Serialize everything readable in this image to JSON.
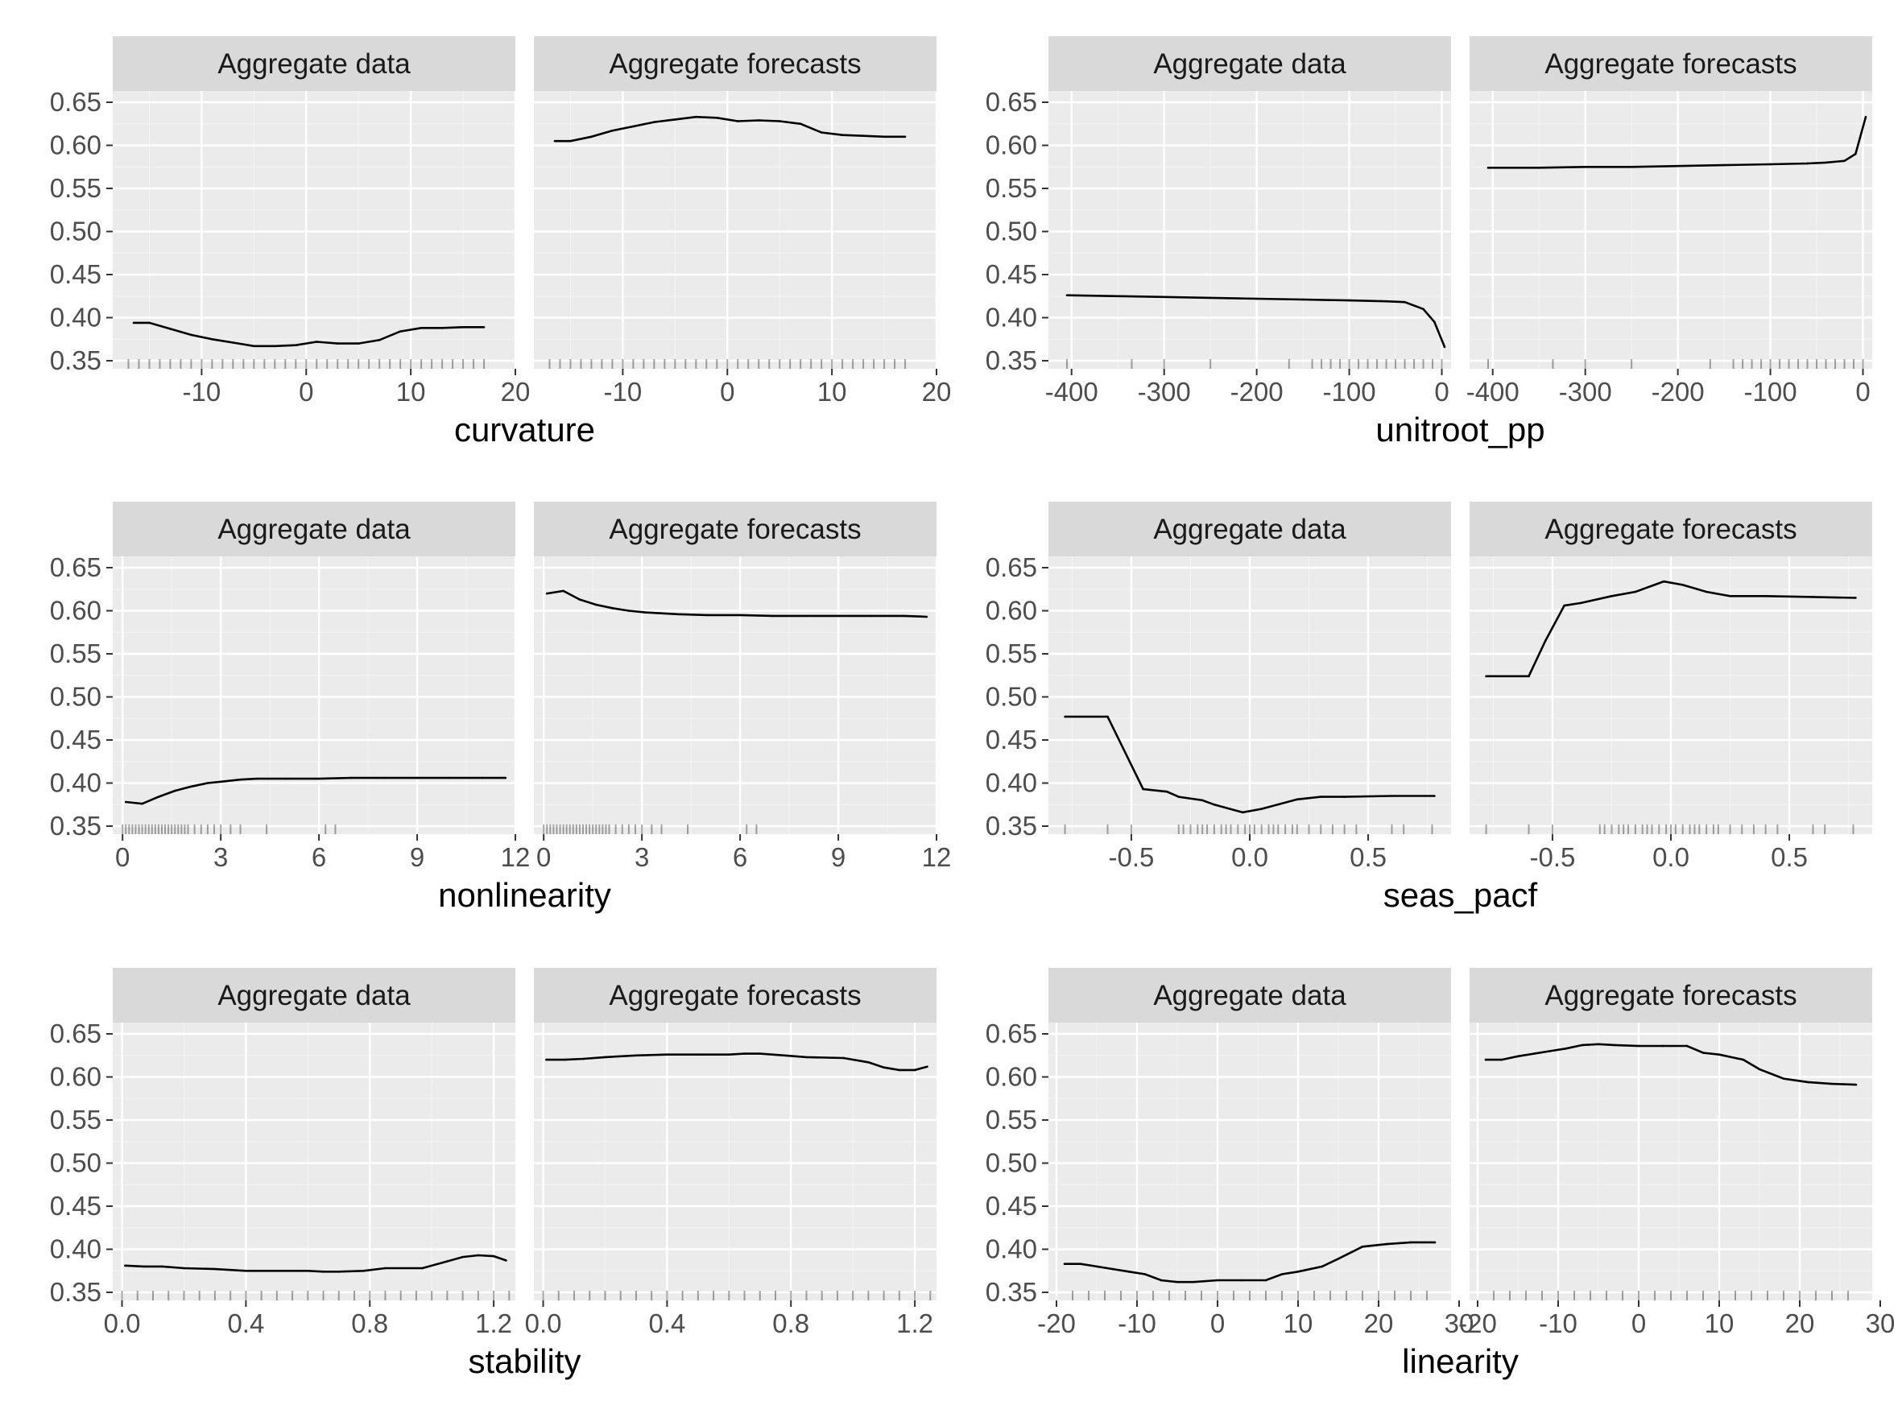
{
  "chart_data": [
    {
      "type": "line",
      "xlabel": "curvature",
      "ylabel": "",
      "ylim": [
        0.35,
        0.65
      ],
      "yticks": [
        "0.35",
        "0.40",
        "0.45",
        "0.50",
        "0.55",
        "0.60",
        "0.65"
      ],
      "grid": true,
      "facets": [
        {
          "title": "Aggregate data",
          "xlim": [
            -18.5,
            20
          ],
          "xticks": [
            "-10",
            "0",
            "10",
            "20"
          ],
          "x": [
            -16.5,
            -15,
            -13,
            -11,
            -9,
            -7,
            -5,
            -3,
            -1,
            1,
            3,
            5,
            7,
            9,
            11,
            13,
            15,
            17
          ],
          "y": [
            0.394,
            0.394,
            0.387,
            0.38,
            0.375,
            0.371,
            0.367,
            0.367,
            0.368,
            0.372,
            0.37,
            0.37,
            0.374,
            0.384,
            0.388,
            0.388,
            0.389,
            0.389
          ],
          "rug": [
            -17,
            -16,
            -15,
            -14,
            -13,
            -12,
            -11,
            -10,
            -9,
            -8,
            -7,
            -6,
            -5,
            -4,
            -3,
            -2,
            -1,
            0,
            1,
            2,
            3,
            4,
            5,
            6,
            7,
            8,
            9,
            10,
            11,
            12,
            13,
            14,
            15,
            16,
            17
          ]
        },
        {
          "title": "Aggregate forecasts",
          "xlim": [
            -18.5,
            20
          ],
          "xticks": [
            "-10",
            "0",
            "10",
            "20"
          ],
          "x": [
            -16.5,
            -15,
            -13,
            -11,
            -9,
            -7,
            -5,
            -3,
            -1,
            1,
            3,
            5,
            7,
            9,
            11,
            13,
            15,
            17
          ],
          "y": [
            0.605,
            0.605,
            0.61,
            0.617,
            0.622,
            0.627,
            0.63,
            0.633,
            0.632,
            0.628,
            0.629,
            0.628,
            0.625,
            0.615,
            0.612,
            0.611,
            0.61,
            0.61
          ],
          "rug": [
            -17,
            -16,
            -15,
            -14,
            -13,
            -12,
            -11,
            -10,
            -9,
            -8,
            -7,
            -6,
            -5,
            -4,
            -3,
            -2,
            -1,
            0,
            1,
            2,
            3,
            4,
            5,
            6,
            7,
            8,
            9,
            10,
            11,
            12,
            13,
            14,
            15,
            16,
            17
          ]
        }
      ]
    },
    {
      "type": "line",
      "xlabel": "unitroot_pp",
      "ylabel": "",
      "ylim": [
        0.35,
        0.65
      ],
      "yticks": [
        "0.35",
        "0.40",
        "0.45",
        "0.50",
        "0.55",
        "0.60",
        "0.65"
      ],
      "grid": true,
      "facets": [
        {
          "title": "Aggregate data",
          "xlim": [
            -425,
            10
          ],
          "xticks": [
            "-400",
            "-300",
            "-200",
            "-100",
            "0"
          ],
          "x": [
            -405,
            -350,
            -300,
            -250,
            -200,
            -150,
            -100,
            -60,
            -40,
            -20,
            -8,
            3
          ],
          "y": [
            0.426,
            0.425,
            0.424,
            0.423,
            0.422,
            0.421,
            0.42,
            0.419,
            0.418,
            0.41,
            0.395,
            0.366
          ],
          "rug": [
            -405,
            -335,
            -300,
            -250,
            -165,
            -140,
            -130,
            -120,
            -110,
            -100,
            -90,
            -80,
            -70,
            -60,
            -50,
            -40,
            -30,
            -20,
            -10,
            0
          ]
        },
        {
          "title": "Aggregate forecasts",
          "xlim": [
            -425,
            10
          ],
          "xticks": [
            "-400",
            "-300",
            "-200",
            "-100",
            "0"
          ],
          "x": [
            -405,
            -350,
            -300,
            -250,
            -200,
            -150,
            -100,
            -60,
            -40,
            -20,
            -8,
            3
          ],
          "y": [
            0.574,
            0.574,
            0.575,
            0.575,
            0.576,
            0.577,
            0.578,
            0.579,
            0.58,
            0.582,
            0.59,
            0.633
          ],
          "rug": [
            -405,
            -335,
            -300,
            -250,
            -165,
            -140,
            -130,
            -120,
            -110,
            -100,
            -90,
            -80,
            -70,
            -60,
            -50,
            -40,
            -30,
            -20,
            -10,
            0
          ]
        }
      ]
    },
    {
      "type": "line",
      "xlabel": "nonlinearity",
      "ylabel": "",
      "ylim": [
        0.35,
        0.65
      ],
      "yticks": [
        "0.35",
        "0.40",
        "0.45",
        "0.50",
        "0.55",
        "0.60",
        "0.65"
      ],
      "grid": true,
      "facets": [
        {
          "title": "Aggregate data",
          "xlim": [
            -0.3,
            12
          ],
          "xticks": [
            "0",
            "3",
            "6",
            "9",
            "12"
          ],
          "x": [
            0.1,
            0.6,
            1.1,
            1.6,
            2.1,
            2.6,
            3.1,
            3.6,
            4.1,
            5,
            6,
            7,
            8,
            9,
            10,
            11,
            11.7
          ],
          "y": [
            0.378,
            0.376,
            0.384,
            0.391,
            0.396,
            0.4,
            0.402,
            0.404,
            0.405,
            0.405,
            0.405,
            0.406,
            0.406,
            0.406,
            0.406,
            0.406,
            0.406
          ],
          "rug": [
            0,
            0.1,
            0.2,
            0.3,
            0.4,
            0.5,
            0.6,
            0.7,
            0.8,
            0.9,
            1.0,
            1.1,
            1.2,
            1.3,
            1.4,
            1.5,
            1.6,
            1.7,
            1.8,
            1.9,
            2.0,
            2.2,
            2.4,
            2.6,
            2.8,
            3.0,
            3.3,
            3.6,
            4.4,
            6.2,
            6.5
          ]
        },
        {
          "title": "Aggregate forecasts",
          "xlim": [
            -0.3,
            12
          ],
          "xticks": [
            "0",
            "3",
            "6",
            "9",
            "12"
          ],
          "x": [
            0.1,
            0.6,
            1.1,
            1.6,
            2.1,
            2.6,
            3.1,
            3.6,
            4.1,
            5,
            6,
            7,
            8,
            9,
            10,
            11,
            11.7
          ],
          "y": [
            0.62,
            0.623,
            0.613,
            0.607,
            0.603,
            0.6,
            0.598,
            0.597,
            0.596,
            0.595,
            0.595,
            0.594,
            0.594,
            0.594,
            0.594,
            0.594,
            0.593
          ],
          "rug": [
            0,
            0.1,
            0.2,
            0.3,
            0.4,
            0.5,
            0.6,
            0.7,
            0.8,
            0.9,
            1.0,
            1.1,
            1.2,
            1.3,
            1.4,
            1.5,
            1.6,
            1.7,
            1.8,
            1.9,
            2.0,
            2.2,
            2.4,
            2.6,
            2.8,
            3.0,
            3.3,
            3.6,
            4.4,
            6.2,
            6.5
          ]
        }
      ]
    },
    {
      "type": "line",
      "xlabel": "seas_pacf",
      "ylabel": "",
      "ylim": [
        0.35,
        0.65
      ],
      "yticks": [
        "0.35",
        "0.40",
        "0.45",
        "0.50",
        "0.55",
        "0.60",
        "0.65"
      ],
      "grid": true,
      "facets": [
        {
          "title": "Aggregate data",
          "xlim": [
            -0.85,
            0.85
          ],
          "xticks": [
            "-0.5",
            "0.0",
            "0.5"
          ],
          "x": [
            -0.78,
            -0.6,
            -0.45,
            -0.35,
            -0.3,
            -0.2,
            -0.15,
            -0.03,
            0.05,
            0.2,
            0.3,
            0.4,
            0.6,
            0.78
          ],
          "y": [
            0.477,
            0.477,
            0.393,
            0.39,
            0.384,
            0.38,
            0.375,
            0.366,
            0.37,
            0.381,
            0.384,
            0.384,
            0.385,
            0.385
          ],
          "rug": [
            -0.78,
            -0.6,
            -0.5,
            -0.3,
            -0.28,
            -0.25,
            -0.22,
            -0.2,
            -0.18,
            -0.15,
            -0.12,
            -0.1,
            -0.08,
            -0.05,
            -0.02,
            0,
            0.02,
            0.05,
            0.08,
            0.1,
            0.12,
            0.15,
            0.18,
            0.2,
            0.25,
            0.3,
            0.35,
            0.4,
            0.45,
            0.6,
            0.65,
            0.77
          ]
        },
        {
          "title": "Aggregate forecasts",
          "xlim": [
            -0.85,
            0.85
          ],
          "xticks": [
            "-0.5",
            "0.0",
            "0.5"
          ],
          "x": [
            -0.78,
            -0.6,
            -0.53,
            -0.45,
            -0.38,
            -0.25,
            -0.15,
            -0.03,
            0.05,
            0.15,
            0.25,
            0.4,
            0.6,
            0.78
          ],
          "y": [
            0.524,
            0.524,
            0.565,
            0.606,
            0.609,
            0.617,
            0.622,
            0.634,
            0.63,
            0.622,
            0.617,
            0.617,
            0.616,
            0.615
          ],
          "rug": [
            -0.78,
            -0.6,
            -0.5,
            -0.3,
            -0.28,
            -0.25,
            -0.22,
            -0.2,
            -0.18,
            -0.15,
            -0.12,
            -0.1,
            -0.08,
            -0.05,
            -0.02,
            0,
            0.02,
            0.05,
            0.08,
            0.1,
            0.12,
            0.15,
            0.18,
            0.2,
            0.25,
            0.3,
            0.35,
            0.4,
            0.45,
            0.6,
            0.65,
            0.77
          ]
        }
      ]
    },
    {
      "type": "line",
      "xlabel": "stability",
      "ylabel": "",
      "ylim": [
        0.35,
        0.65
      ],
      "yticks": [
        "0.35",
        "0.40",
        "0.45",
        "0.50",
        "0.55",
        "0.60",
        "0.65"
      ],
      "grid": true,
      "facets": [
        {
          "title": "Aggregate data",
          "xlim": [
            -0.03,
            1.27
          ],
          "xticks": [
            "0.0",
            "0.4",
            "0.8",
            "1.2"
          ],
          "x": [
            0.01,
            0.07,
            0.13,
            0.2,
            0.3,
            0.4,
            0.5,
            0.6,
            0.65,
            0.7,
            0.78,
            0.85,
            0.97,
            1.05,
            1.1,
            1.15,
            1.2,
            1.24
          ],
          "y": [
            0.381,
            0.38,
            0.38,
            0.378,
            0.377,
            0.375,
            0.375,
            0.375,
            0.374,
            0.374,
            0.375,
            0.378,
            0.378,
            0.386,
            0.391,
            0.393,
            0.392,
            0.387
          ],
          "rug": [
            0.0,
            0.05,
            0.1,
            0.15,
            0.2,
            0.25,
            0.3,
            0.35,
            0.4,
            0.45,
            0.5,
            0.55,
            0.6,
            0.65,
            0.7,
            0.75,
            0.8,
            0.85,
            0.9,
            0.95,
            1.0,
            1.05,
            1.1,
            1.15,
            1.2,
            1.25
          ]
        },
        {
          "title": "Aggregate forecasts",
          "xlim": [
            -0.03,
            1.27
          ],
          "xticks": [
            "0.0",
            "0.4",
            "0.8",
            "1.2"
          ],
          "x": [
            0.01,
            0.07,
            0.13,
            0.2,
            0.3,
            0.4,
            0.5,
            0.6,
            0.65,
            0.7,
            0.78,
            0.85,
            0.97,
            1.05,
            1.1,
            1.15,
            1.2,
            1.24
          ],
          "y": [
            0.62,
            0.62,
            0.621,
            0.623,
            0.625,
            0.626,
            0.626,
            0.626,
            0.627,
            0.627,
            0.625,
            0.623,
            0.622,
            0.617,
            0.611,
            0.608,
            0.608,
            0.612
          ],
          "rug": [
            0.0,
            0.05,
            0.1,
            0.15,
            0.2,
            0.25,
            0.3,
            0.35,
            0.4,
            0.45,
            0.5,
            0.55,
            0.6,
            0.65,
            0.7,
            0.75,
            0.8,
            0.85,
            0.9,
            0.95,
            1.0,
            1.05,
            1.1,
            1.15,
            1.2,
            1.25
          ]
        }
      ]
    },
    {
      "type": "line",
      "xlabel": "linearity",
      "ylabel": "",
      "ylim": [
        0.35,
        0.65
      ],
      "yticks": [
        "0.35",
        "0.40",
        "0.45",
        "0.50",
        "0.55",
        "0.60",
        "0.65"
      ],
      "grid": true,
      "facets": [
        {
          "title": "Aggregate data",
          "xlim": [
            -21,
            29
          ],
          "xticks": [
            "-20",
            "-10",
            "0",
            "10",
            "20",
            "30"
          ],
          "x": [
            -19,
            -17,
            -15,
            -13,
            -11,
            -9,
            -7,
            -5,
            -3,
            0,
            3,
            6,
            8,
            10,
            13,
            15,
            18,
            21,
            24,
            27
          ],
          "y": [
            0.383,
            0.383,
            0.38,
            0.377,
            0.374,
            0.371,
            0.364,
            0.362,
            0.362,
            0.364,
            0.364,
            0.364,
            0.371,
            0.374,
            0.38,
            0.389,
            0.403,
            0.406,
            0.408,
            0.408
          ],
          "rug": [
            -18,
            -16,
            -14,
            -12,
            -10,
            -8,
            -6,
            -4,
            -2,
            0,
            2,
            4,
            6,
            8,
            10,
            12,
            14,
            16,
            18,
            20,
            22,
            24,
            26
          ]
        },
        {
          "title": "Aggregate forecasts",
          "xlim": [
            -21,
            29
          ],
          "xticks": [
            "-20",
            "-10",
            "0",
            "10",
            "20",
            "30"
          ],
          "x": [
            -19,
            -17,
            -15,
            -13,
            -11,
            -9,
            -7,
            -5,
            -3,
            0,
            3,
            6,
            8,
            10,
            13,
            15,
            18,
            21,
            24,
            27
          ],
          "y": [
            0.62,
            0.62,
            0.624,
            0.627,
            0.63,
            0.633,
            0.637,
            0.638,
            0.637,
            0.636,
            0.636,
            0.636,
            0.628,
            0.626,
            0.62,
            0.609,
            0.598,
            0.594,
            0.592,
            0.591
          ],
          "rug": [
            -18,
            -16,
            -14,
            -12,
            -10,
            -8,
            -6,
            -4,
            -2,
            0,
            2,
            4,
            6,
            8,
            10,
            12,
            14,
            16,
            18,
            20,
            22,
            24,
            26
          ]
        }
      ]
    }
  ]
}
